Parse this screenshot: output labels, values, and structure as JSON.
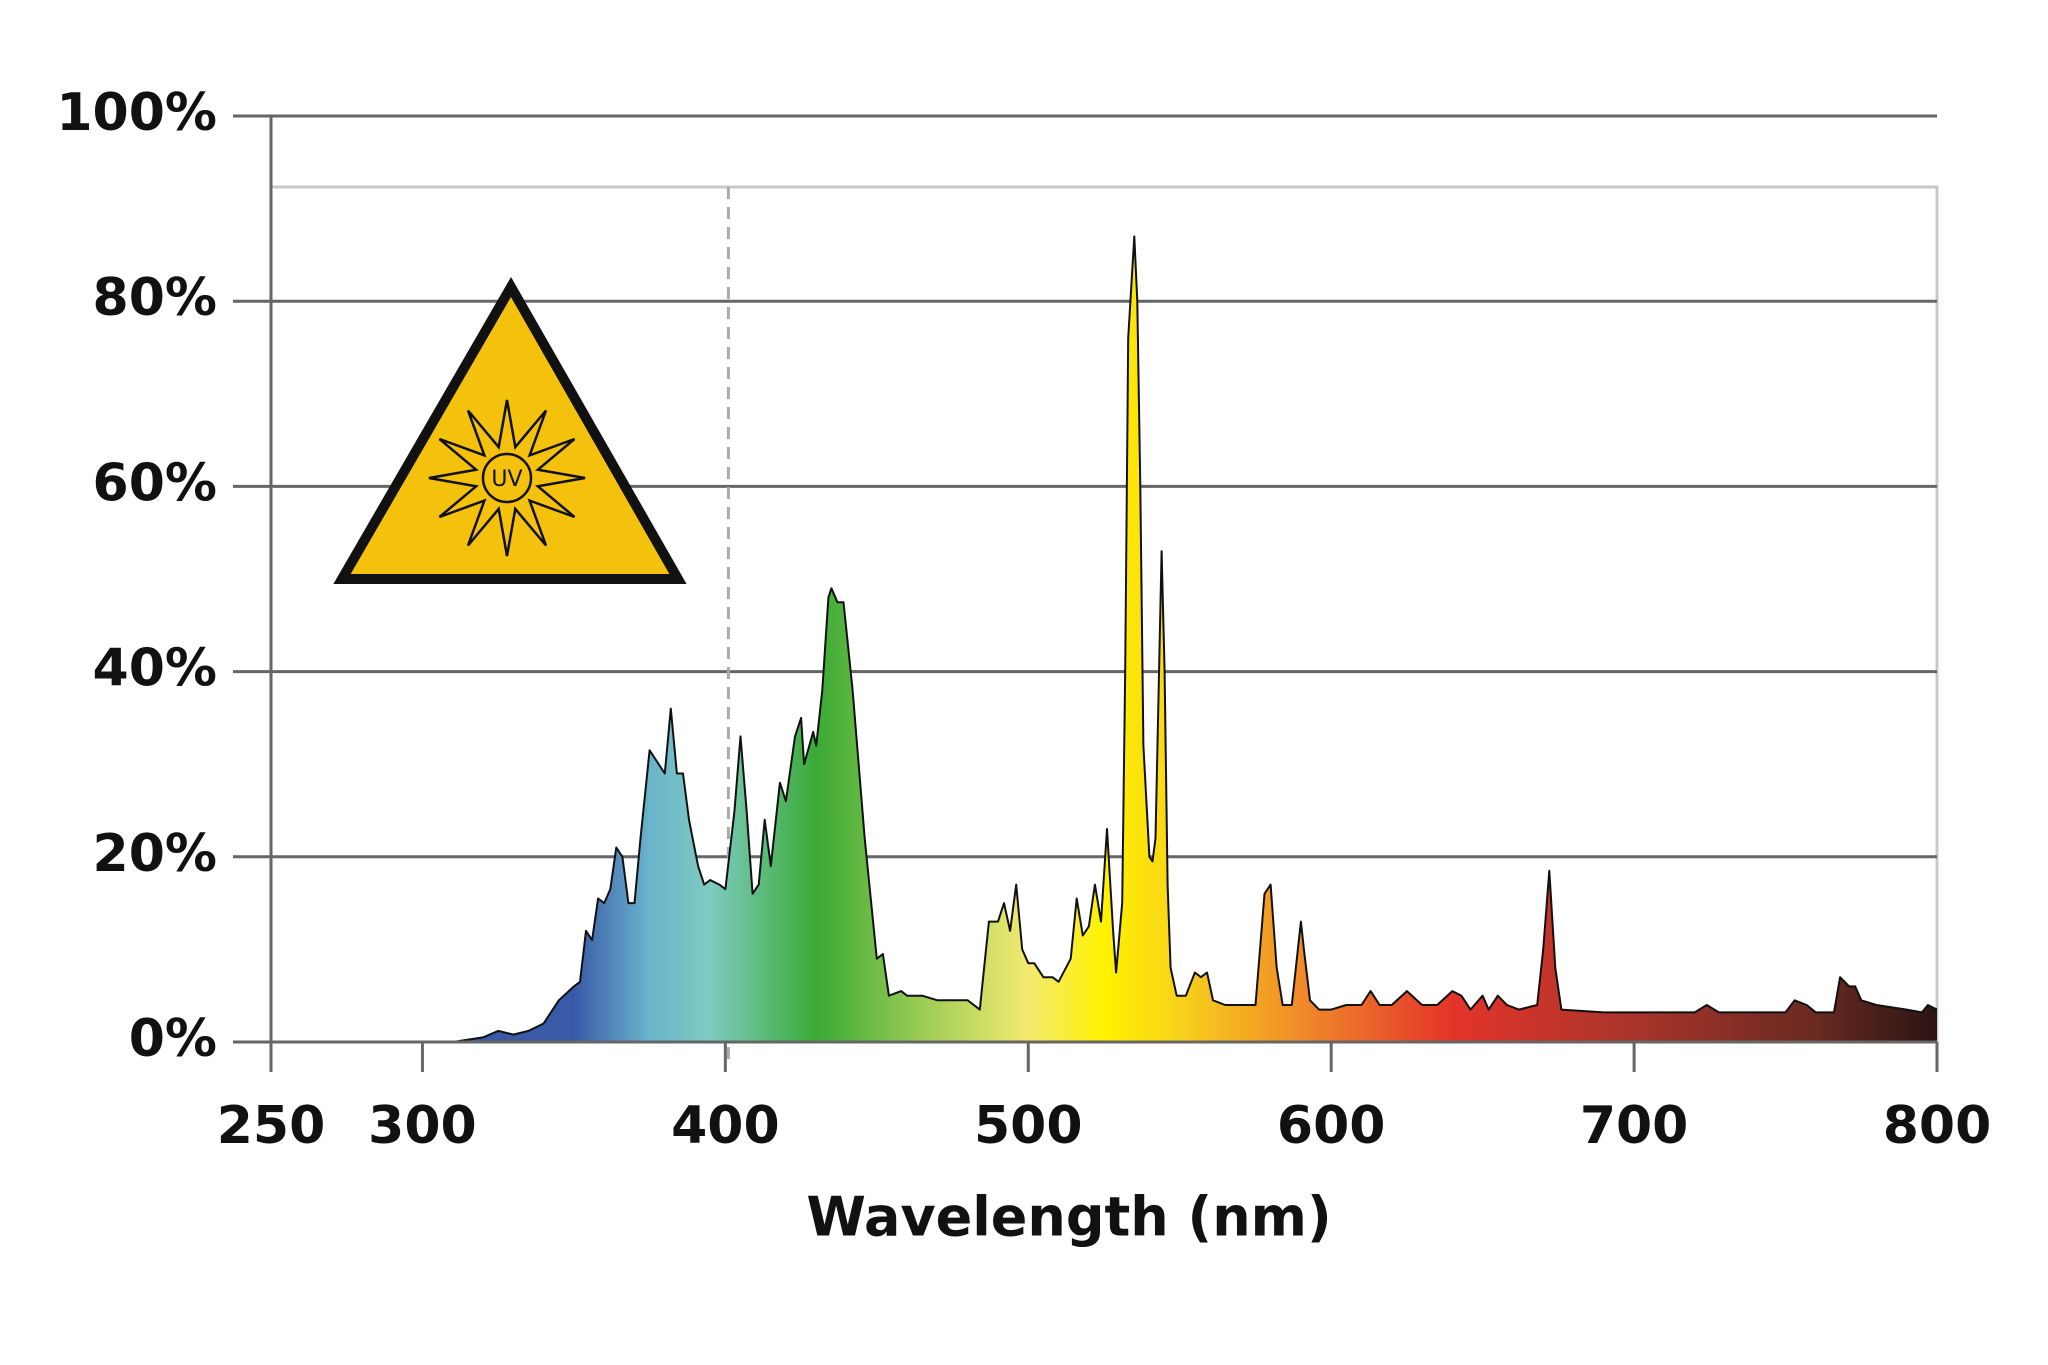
{
  "chart_data": {
    "type": "area",
    "x_label": "Wavelength (nm)",
    "icon_label": "UV",
    "x": [
      250,
      310,
      320,
      325,
      330,
      335,
      340,
      345,
      350,
      352,
      354,
      356,
      358,
      360,
      362,
      364,
      366,
      368,
      370,
      372,
      375,
      378,
      380,
      382,
      384,
      386,
      388,
      391,
      393,
      395,
      398,
      400,
      403,
      405,
      407,
      409,
      411,
      413,
      415,
      418,
      420,
      423,
      425,
      426,
      429,
      430,
      432,
      434,
      435,
      437,
      439,
      442,
      446,
      450,
      452,
      454,
      458,
      460,
      465,
      470,
      475,
      480,
      484,
      487,
      490,
      492,
      494,
      496,
      498,
      500,
      502,
      505,
      508,
      510,
      514,
      516,
      518,
      520,
      522,
      524,
      526,
      528,
      529,
      531,
      532,
      533,
      535,
      536,
      537,
      538,
      540,
      541,
      542,
      544,
      545,
      546,
      547,
      549,
      552,
      555,
      557,
      559,
      561,
      565,
      570,
      575,
      578,
      580,
      582,
      584,
      587,
      590,
      591,
      593,
      596,
      600,
      605,
      610,
      613,
      616,
      620,
      625,
      630,
      635,
      640,
      643,
      646,
      650,
      652,
      655,
      658,
      662,
      668,
      670,
      672,
      674,
      676,
      690,
      710,
      720,
      724,
      728,
      750,
      753,
      757,
      760,
      766,
      768,
      771,
      773,
      775,
      780,
      790,
      795,
      797,
      800
    ],
    "values": [
      0,
      0,
      0.5,
      1.2,
      0.8,
      1.2,
      2,
      4.5,
      6,
      6.5,
      12,
      11,
      15.5,
      15,
      16.5,
      21,
      20,
      15,
      15,
      22,
      31.5,
      30,
      29,
      36,
      29,
      29,
      24,
      19,
      17,
      17.5,
      17,
      16.5,
      25,
      33,
      25,
      16,
      17,
      24,
      19,
      28,
      26,
      33,
      35,
      30,
      33.5,
      32,
      38,
      48,
      49,
      47.5,
      47.5,
      38,
      22,
      9,
      9.5,
      5,
      5.5,
      5,
      5,
      4.5,
      4.5,
      4.5,
      3.5,
      13,
      13,
      15,
      12,
      17,
      10,
      8.5,
      8.5,
      7,
      7,
      6.5,
      9,
      15.5,
      11.5,
      12.5,
      17,
      13,
      23,
      12,
      7.5,
      15,
      40,
      76,
      87,
      80,
      60,
      32,
      20,
      19.5,
      22,
      53,
      40,
      17,
      8,
      5,
      5,
      7.5,
      7,
      7.5,
      4.5,
      4,
      4,
      4,
      16,
      17,
      8,
      4,
      4,
      13,
      10,
      4.5,
      3.5,
      3.5,
      4,
      4,
      5.5,
      4,
      4,
      5.5,
      4,
      4,
      5.5,
      5,
      3.5,
      5,
      3.5,
      5,
      4,
      3.5,
      4,
      10,
      18.5,
      8,
      3.5,
      3.2,
      3.2,
      3.2,
      4,
      3.2,
      3.2,
      4.5,
      4,
      3.2,
      3.2,
      7,
      6,
      6,
      4.5,
      4,
      3.5,
      3.2,
      4,
      3.5
    ],
    "gradient": [
      {
        "x": 350,
        "color": "#3a5aa8"
      },
      {
        "x": 375,
        "color": "#6ab4cc"
      },
      {
        "x": 395,
        "color": "#7ecbc0"
      },
      {
        "x": 430,
        "color": "#3aaa35"
      },
      {
        "x": 470,
        "color": "#a9d05a"
      },
      {
        "x": 500,
        "color": "#f2ea70"
      },
      {
        "x": 525,
        "color": "#fff200"
      },
      {
        "x": 550,
        "color": "#f8d21a"
      },
      {
        "x": 590,
        "color": "#f08a2a"
      },
      {
        "x": 640,
        "color": "#e4342a"
      },
      {
        "x": 700,
        "color": "#a8342a"
      },
      {
        "x": 760,
        "color": "#6a2a22"
      },
      {
        "x": 800,
        "color": "#2a1414"
      }
    ],
    "reference_line_x": 401,
    "xlim": [
      250,
      800
    ],
    "xticks": [
      250,
      300,
      400,
      500,
      600,
      700,
      800
    ],
    "ylim": [
      0,
      100
    ],
    "yticks": [
      {
        "value": 0,
        "label": "0%"
      },
      {
        "value": 20,
        "label": "20%"
      },
      {
        "value": 40,
        "label": "40%"
      },
      {
        "value": 60,
        "label": "60%"
      },
      {
        "value": 80,
        "label": "80%"
      },
      {
        "value": 100,
        "label": "100%"
      }
    ],
    "grid": true
  }
}
